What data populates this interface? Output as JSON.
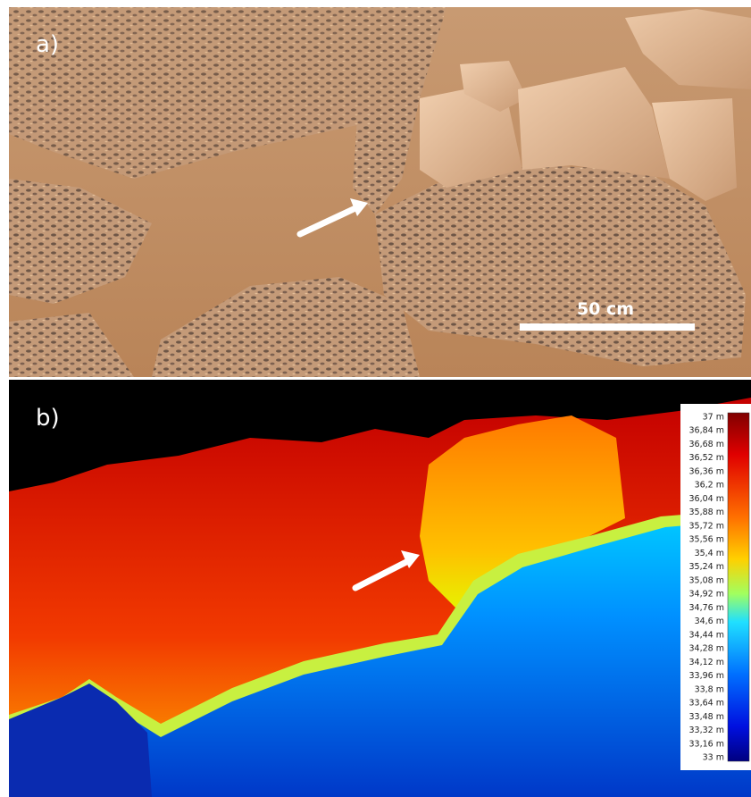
{
  "panel_a": {
    "label": "a)",
    "scale_bar": "50 cm"
  },
  "panel_b": {
    "label": "b)"
  },
  "colorbar": {
    "labels": [
      "37 m",
      "36,84 m",
      "36,68 m",
      "36,52 m",
      "36,36 m",
      "36,2 m",
      "36,04 m",
      "35,88 m",
      "35,72 m",
      "35,56 m",
      "35,4 m",
      "35,24 m",
      "35,08 m",
      "34,92 m",
      "34,76 m",
      "34,6 m",
      "34,44 m",
      "34,28 m",
      "34,12 m",
      "33,96 m",
      "33,8 m",
      "33,64 m",
      "33,48 m",
      "33,32 m",
      "33,16 m",
      "33 m"
    ]
  }
}
